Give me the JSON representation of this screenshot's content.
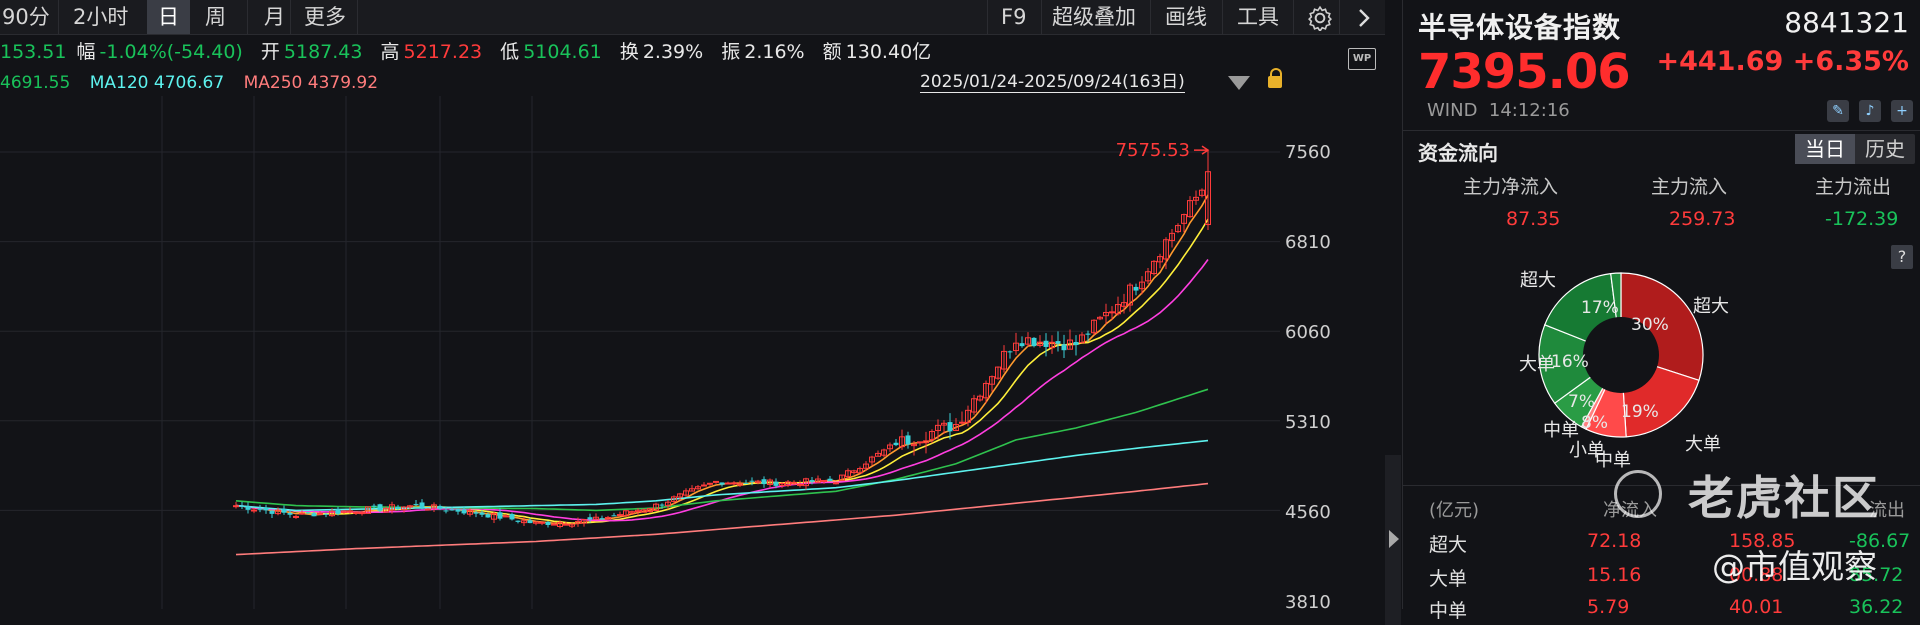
{
  "toolbar": {
    "left_items": [
      "90分",
      "2小时",
      "日",
      "周",
      "月",
      "更多"
    ],
    "active": "日",
    "right_items": [
      "F9",
      "超级叠加",
      "画线",
      "工具"
    ]
  },
  "ohlc": {
    "prev_value": "153.51",
    "change_label": "幅",
    "change_value": "-1.04%(-54.40)",
    "open_label": "开",
    "open_value": "5187.43",
    "high_label": "高",
    "high_value": "5217.23",
    "low_label": "低",
    "low_value": "5104.61",
    "turnover_label": "换",
    "turnover_value": "2.39%",
    "amplitude_label": "振",
    "amplitude_value": "2.16%",
    "amount_label": "额",
    "amount_value": "130.40亿"
  },
  "ma": {
    "ma_partial_value": "4691.55",
    "ma120_label": "MA120",
    "ma120_value": "4706.67",
    "ma250_label": "MA250",
    "ma250_value": "4379.92"
  },
  "range_label": "2025/01/24-2025/09/24(163日)",
  "peak_label": "7575.53",
  "y_ticks": [
    "7560",
    "6810",
    "6060",
    "5310",
    "4560",
    "3810"
  ],
  "panel": {
    "title": "半导体设备指数",
    "code": "8841321",
    "price": "7395.06",
    "change": "+441.69 +6.35%",
    "source": "WIND",
    "time": "14:12:16",
    "flow_title": "资金流向",
    "tabs": [
      "当日",
      "历史"
    ],
    "flow_headers": [
      "主力净流入",
      "主力流入",
      "主力流出"
    ],
    "flow_values": [
      "87.35",
      "259.73",
      "-172.39"
    ],
    "donut_labels": {
      "super_in": "超大",
      "big_in": "大单",
      "super_out": "超大",
      "big_out": "大单",
      "mid_out": "中单",
      "small": "小单",
      "mid_in": "中单"
    },
    "donut_pcts": [
      "30%",
      "19%",
      "8%",
      "7%",
      "16%",
      "17%"
    ],
    "table_headers": [
      "(亿元)",
      "净流入",
      "流出"
    ],
    "table_rows": [
      {
        "label": "超大",
        "net": "72.18",
        "in": "158.85",
        "out": "-86.67"
      },
      {
        "label": "大单",
        "net": "15.16",
        "in": "00.88",
        "out": "85.72"
      },
      {
        "label": "中单",
        "net": "5.79",
        "in": "40.01",
        "out": "36.22"
      }
    ]
  },
  "watermark": {
    "brand": "老虎社区",
    "account": "@市值观察"
  },
  "colors": {
    "up": "#ff3b3b",
    "down": "#19c25a",
    "ma5": "#ff9a2e",
    "ma10": "#ffef3a",
    "ma20": "#ff3ee0",
    "ma60": "#2fc24e",
    "ma120": "#5df2ee",
    "ma250": "#ff7c7c"
  },
  "chart_data": {
    "type": "line",
    "title": "",
    "ylim": [
      3810,
      7575.53
    ],
    "x": [
      0,
      10,
      20,
      30,
      40,
      50,
      60,
      70,
      80,
      90,
      100,
      110,
      120,
      130,
      140,
      150,
      163
    ],
    "series": [
      {
        "name": "",
        "values": [
          4600,
          4520,
          4560,
          4600,
          4540,
          4450,
          4480,
          4600,
          4800,
          4790,
          4810,
          5120,
          5280,
          6000,
          5950,
          6450,
          7395
        ]
      },
      {
        "name": "MA120",
        "values": [
          4600,
          4560,
          4570,
          4580,
          4590,
          4600,
          4610,
          4640,
          4690,
          4720,
          4750,
          4810,
          4880,
          4950,
          5020,
          5080,
          4706.67
        ]
      },
      {
        "name": "MA250",
        "values": [
          4190,
          4215,
          4240,
          4260,
          4280,
          4300,
          4330,
          4360,
          4400,
          4440,
          4480,
          4520,
          4570,
          4620,
          4670,
          4720,
          4379.92
        ]
      }
    ]
  }
}
